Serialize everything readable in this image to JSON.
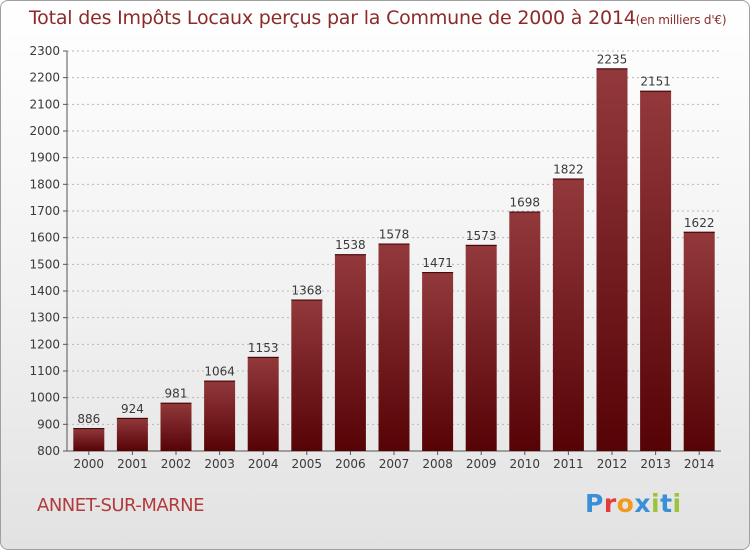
{
  "header": {
    "title": "Total des Impôts Locaux perçus par la Commune de 2000 à 2014",
    "unit": "(en milliers d'€)"
  },
  "commune": "ANNET-SUR-MARNE",
  "logo": {
    "text": "Proxiti",
    "letter_colors": [
      "#3b8fd6",
      "#e23c3c",
      "#f39a1e",
      "#3b8fd6",
      "#9bc43a",
      "#3b8fd6",
      "#9bc43a"
    ]
  },
  "colors": {
    "bar_light": "#93393c",
    "bar_dark": "#560306",
    "grid": "#b8b8b8",
    "axis_text": "#3a3a3a"
  },
  "chart_data": {
    "type": "bar",
    "title": "Total des Impôts Locaux perçus par la Commune de 2000 à 2014",
    "ylabel": "",
    "xlabel": "",
    "categories": [
      "2000",
      "2001",
      "2002",
      "2003",
      "2004",
      "2005",
      "2006",
      "2007",
      "2008",
      "2009",
      "2010",
      "2011",
      "2012",
      "2013",
      "2014"
    ],
    "values": [
      886,
      924,
      981,
      1064,
      1153,
      1368,
      1538,
      1578,
      1471,
      1573,
      1698,
      1822,
      2235,
      2151,
      1622
    ],
    "data_labels": [
      "886",
      "924",
      "981",
      "1064",
      "1153",
      "1368",
      "1538",
      "1578",
      "1471",
      "1573",
      "1698",
      "1822",
      "2235",
      "2151",
      "1622"
    ],
    "yticks": [
      "800",
      "900",
      "1000",
      "1100",
      "1200",
      "1300",
      "1400",
      "1500",
      "1600",
      "1700",
      "1800",
      "1900",
      "2000",
      "2100",
      "2200",
      "2300"
    ],
    "ylim": [
      800,
      2300
    ],
    "grid": "horizontal dashed",
    "legend": "none"
  }
}
